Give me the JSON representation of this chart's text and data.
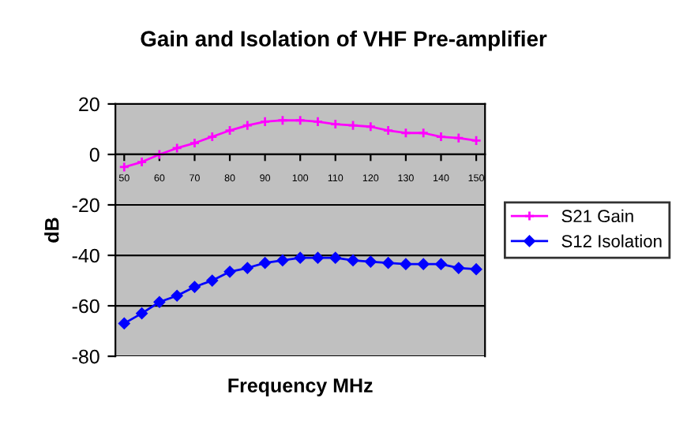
{
  "chart_data": {
    "type": "line",
    "title": "Gain and Isolation of VHF Pre-amplifier",
    "xlabel": "Frequency MHz",
    "ylabel": "dB",
    "x": [
      50,
      55,
      60,
      65,
      70,
      75,
      80,
      85,
      90,
      95,
      100,
      105,
      110,
      115,
      120,
      125,
      130,
      135,
      140,
      145,
      150
    ],
    "xlim": [
      47.5,
      152.5
    ],
    "xticks": [
      50,
      60,
      70,
      80,
      90,
      100,
      110,
      120,
      130,
      140,
      150
    ],
    "ylim": [
      -80,
      20
    ],
    "yticks": [
      -80,
      -60,
      -40,
      -20,
      0,
      20
    ],
    "grid": "y",
    "legend": "right",
    "series": [
      {
        "name": "S21 Gain",
        "color": "#ff00ff",
        "marker": "cross",
        "values": [
          -5,
          -3,
          0,
          2.5,
          4.5,
          7,
          9.5,
          11.5,
          13,
          13.5,
          13.5,
          13,
          12,
          11.5,
          11,
          9.5,
          8.5,
          8.5,
          7,
          6.5,
          5.5
        ]
      },
      {
        "name": "S12 Isolation",
        "color": "#0000ff",
        "marker": "diamond",
        "values": [
          -67,
          -63,
          -58.5,
          -56,
          -52.5,
          -50,
          -46.5,
          -45,
          -43,
          -42,
          -41,
          -41,
          -41,
          -42,
          -42.5,
          -43,
          -43.5,
          -43.5,
          -43.5,
          -45,
          -45.5
        ]
      }
    ]
  }
}
